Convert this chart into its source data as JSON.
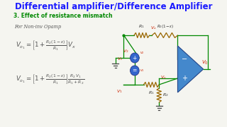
{
  "title": "Differential amplifier/Difference Amplifier",
  "title_color": "#1a1aff",
  "bg_color": "#f5f5f0",
  "subtitle": "3. Effect of resistance mismatch",
  "subtitle_color": "#008800",
  "wire_color": "#008800",
  "opamp_color": "#4488cc",
  "resistor_color": "#996600",
  "label_red": "#cc2200",
  "label_blue": "#0000bb",
  "label_dark": "#333333",
  "circle_color": "#2255aa",
  "circle_fill": "#3366cc",
  "ground_color": "#444444",
  "formula_color": "#555555"
}
